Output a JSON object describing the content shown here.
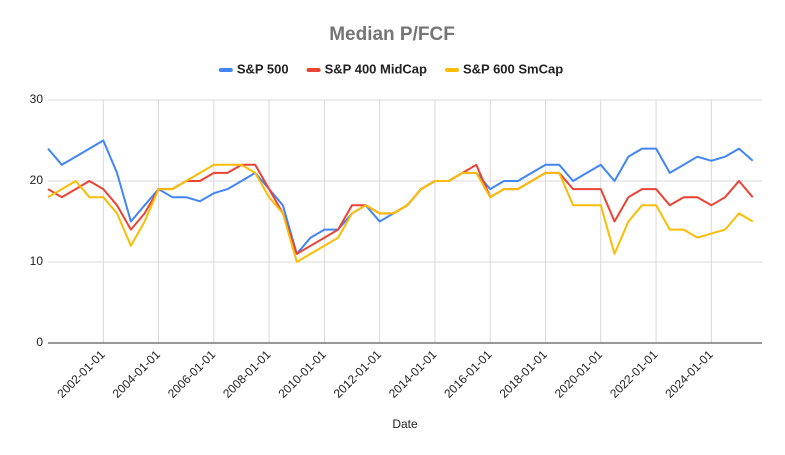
{
  "chart_data": {
    "type": "line",
    "title": "Median P/FCF",
    "x_label": "Date",
    "x": [
      "2000-01-01",
      "2000-07-01",
      "2001-01-01",
      "2001-07-01",
      "2002-01-01",
      "2002-07-01",
      "2003-01-01",
      "2003-07-01",
      "2004-01-01",
      "2004-07-01",
      "2005-01-01",
      "2005-07-01",
      "2006-01-01",
      "2006-07-01",
      "2007-01-01",
      "2007-07-01",
      "2008-01-01",
      "2008-07-01",
      "2009-01-01",
      "2009-07-01",
      "2010-01-01",
      "2010-07-01",
      "2011-01-01",
      "2011-07-01",
      "2012-01-01",
      "2012-07-01",
      "2013-01-01",
      "2013-07-01",
      "2014-01-01",
      "2014-07-01",
      "2015-01-01",
      "2015-07-01",
      "2016-01-01",
      "2016-07-01",
      "2017-01-01",
      "2017-07-01",
      "2018-01-01",
      "2018-07-01",
      "2019-01-01",
      "2019-07-01",
      "2020-01-01",
      "2020-07-01",
      "2021-01-01",
      "2021-07-01",
      "2022-01-01",
      "2022-07-01",
      "2023-01-01",
      "2023-07-01",
      "2024-01-01",
      "2024-07-01",
      "2025-01-01",
      "2025-07-01"
    ],
    "series": [
      {
        "name": "S&P 500",
        "color": "#4285f4",
        "values": [
          24,
          22,
          23,
          24,
          25,
          21,
          15,
          17,
          19,
          18,
          18,
          17.5,
          18.5,
          19,
          20,
          21,
          19,
          17,
          11,
          13,
          14,
          14,
          16,
          17,
          15,
          16,
          17,
          19,
          20,
          20,
          21,
          21,
          19,
          20,
          20,
          21,
          22,
          22,
          20,
          21,
          22,
          20,
          23,
          24,
          24,
          21,
          22,
          23,
          22.5,
          23,
          24,
          22.5
        ]
      },
      {
        "name": "S&P 400 MidCap",
        "color": "#ea4335",
        "values": [
          19,
          18,
          19,
          20,
          19,
          17,
          14,
          16,
          19,
          19,
          20,
          20,
          21,
          21,
          22,
          22,
          19,
          16,
          11,
          12,
          13,
          14,
          17,
          17,
          16,
          16,
          17,
          19,
          20,
          20,
          21,
          22,
          18,
          19,
          19,
          20,
          21,
          21,
          19,
          19,
          19,
          15,
          18,
          19,
          19,
          17,
          18,
          18,
          17,
          18,
          20,
          18
        ]
      },
      {
        "name": "S&P 600 SmCap",
        "color": "#fbbc04",
        "values": [
          18,
          19,
          20,
          18,
          18,
          16,
          12,
          15,
          19,
          19,
          20,
          21,
          22,
          22,
          22,
          21,
          18,
          16,
          10,
          11,
          12,
          13,
          16,
          17,
          16,
          16,
          17,
          19,
          20,
          20,
          21,
          21,
          18,
          19,
          19,
          20,
          21,
          21,
          17,
          17,
          17,
          11,
          15,
          17,
          17,
          14,
          14,
          13,
          13.5,
          14,
          16,
          15
        ]
      }
    ],
    "xlim": [
      "2000-01-01",
      "2025-11-01"
    ],
    "xticks": [
      "2002-01-01",
      "2004-01-01",
      "2006-01-01",
      "2008-01-01",
      "2010-01-01",
      "2012-01-01",
      "2014-01-01",
      "2016-01-01",
      "2018-01-01",
      "2020-01-01",
      "2022-01-01",
      "2024-01-01"
    ],
    "ylim": [
      0,
      30
    ],
    "yticks": [
      0,
      10,
      20,
      30
    ],
    "grid": true
  }
}
